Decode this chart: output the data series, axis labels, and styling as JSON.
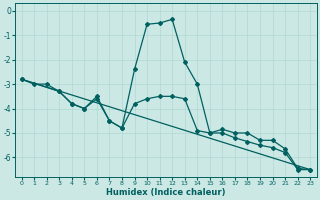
{
  "xlabel": "Humidex (Indice chaleur)",
  "background_color": "#cce8e4",
  "grid_color": "#b0d8d4",
  "line_color": "#006060",
  "xlim": [
    -0.5,
    23.5
  ],
  "ylim": [
    -6.8,
    0.3
  ],
  "xticks": [
    0,
    1,
    2,
    3,
    4,
    5,
    6,
    7,
    8,
    9,
    10,
    11,
    12,
    13,
    14,
    15,
    16,
    17,
    18,
    19,
    20,
    21,
    22,
    23
  ],
  "yticks": [
    0,
    -1,
    -2,
    -3,
    -4,
    -5,
    -6
  ],
  "series1": [
    [
      0,
      -2.8
    ],
    [
      1,
      -3.0
    ],
    [
      2,
      -3.0
    ],
    [
      3,
      -3.3
    ],
    [
      4,
      -3.8
    ],
    [
      5,
      -4.0
    ],
    [
      6,
      -3.5
    ],
    [
      7,
      -4.5
    ],
    [
      8,
      -4.8
    ],
    [
      9,
      -2.4
    ],
    [
      10,
      -0.55
    ],
    [
      11,
      -0.5
    ],
    [
      12,
      -0.35
    ],
    [
      13,
      -2.1
    ],
    [
      14,
      -3.0
    ],
    [
      15,
      -5.0
    ],
    [
      16,
      -4.85
    ],
    [
      17,
      -5.0
    ],
    [
      18,
      -5.0
    ],
    [
      19,
      -5.3
    ],
    [
      20,
      -5.3
    ],
    [
      21,
      -5.65
    ],
    [
      22,
      -6.45
    ],
    [
      23,
      -6.5
    ]
  ],
  "series2": [
    [
      0,
      -2.8
    ],
    [
      3,
      -3.3
    ],
    [
      4,
      -3.8
    ],
    [
      5,
      -4.0
    ],
    [
      6,
      -3.6
    ],
    [
      7,
      -4.5
    ],
    [
      8,
      -4.8
    ],
    [
      9,
      -3.8
    ],
    [
      10,
      -3.6
    ],
    [
      11,
      -3.5
    ],
    [
      12,
      -3.5
    ],
    [
      13,
      -3.6
    ],
    [
      14,
      -4.9
    ],
    [
      15,
      -5.0
    ],
    [
      16,
      -5.0
    ],
    [
      17,
      -5.2
    ],
    [
      18,
      -5.35
    ],
    [
      19,
      -5.5
    ],
    [
      20,
      -5.6
    ],
    [
      21,
      -5.8
    ],
    [
      22,
      -6.5
    ],
    [
      23,
      -6.5
    ]
  ],
  "series3": [
    [
      0,
      -2.8
    ],
    [
      23,
      -6.5
    ]
  ]
}
